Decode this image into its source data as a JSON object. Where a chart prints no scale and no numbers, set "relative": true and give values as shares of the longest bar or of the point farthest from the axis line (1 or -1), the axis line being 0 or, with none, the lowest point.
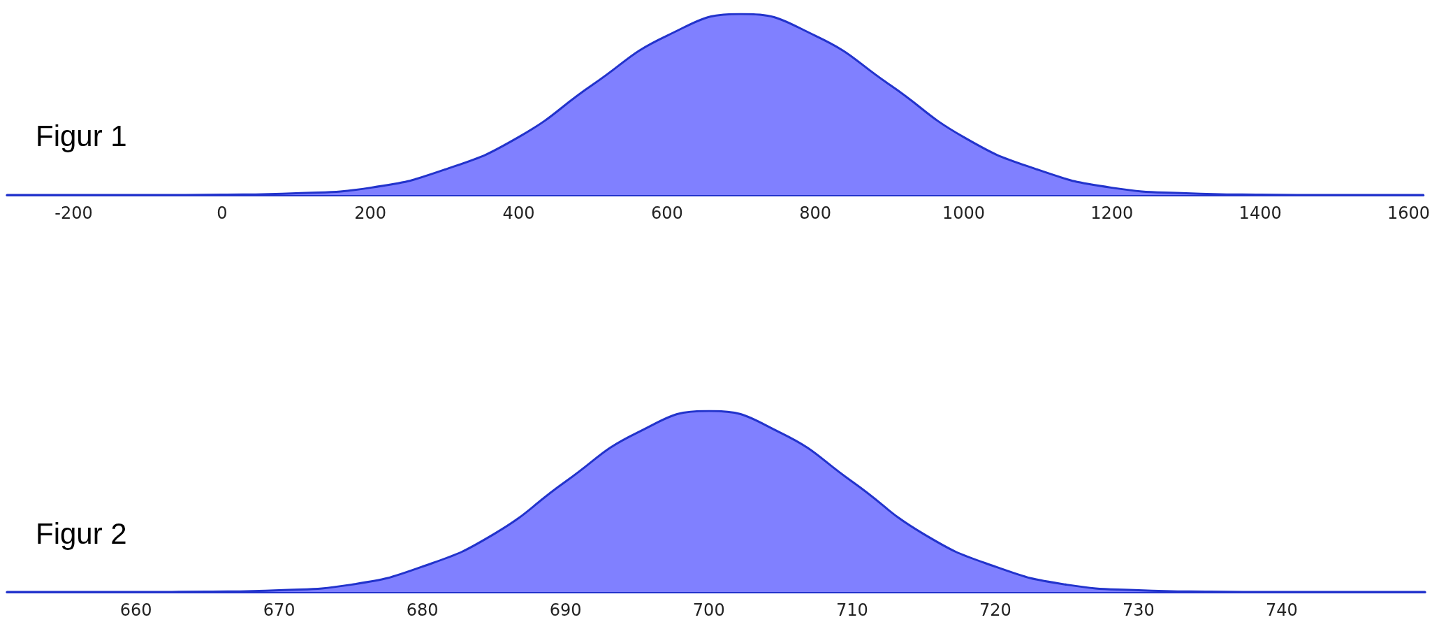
{
  "chart_data": [
    {
      "type": "area",
      "title": "Figur 1",
      "relative": true,
      "x": [
        -290,
        -200,
        -100,
        0,
        100,
        200,
        300,
        400,
        500,
        600,
        700,
        800,
        900,
        1000,
        1100,
        1200,
        1300,
        1400,
        1500,
        1600,
        1620
      ],
      "values": [
        0,
        0,
        0,
        0.002,
        0.01,
        0.04,
        0.14,
        0.32,
        0.61,
        0.88,
        1,
        0.88,
        0.61,
        0.32,
        0.14,
        0.04,
        0.01,
        0.002,
        0,
        0,
        0
      ],
      "color": "#8080ff",
      "xlim": [
        -290,
        1620
      ],
      "xticks": [
        -200,
        0,
        200,
        400,
        600,
        800,
        1000,
        1200,
        1400,
        1600
      ],
      "grid": false,
      "marker": "none",
      "line_style": "solid"
    },
    {
      "type": "area",
      "title": "Figur 2",
      "relative": true,
      "x": [
        651,
        655,
        660,
        665,
        670,
        675,
        680,
        685,
        690,
        695,
        700,
        705,
        710,
        715,
        720,
        725,
        730,
        735,
        740,
        745,
        750
      ],
      "values": [
        0,
        0,
        0,
        0.002,
        0.01,
        0.04,
        0.14,
        0.32,
        0.61,
        0.88,
        1,
        0.88,
        0.61,
        0.32,
        0.14,
        0.04,
        0.01,
        0.002,
        0,
        0,
        0
      ],
      "color": "#8080ff",
      "xlim": [
        651,
        750
      ],
      "xticks": [
        660,
        670,
        680,
        690,
        700,
        710,
        720,
        730,
        740
      ],
      "grid": false,
      "marker": "none",
      "line_style": "solid"
    }
  ]
}
